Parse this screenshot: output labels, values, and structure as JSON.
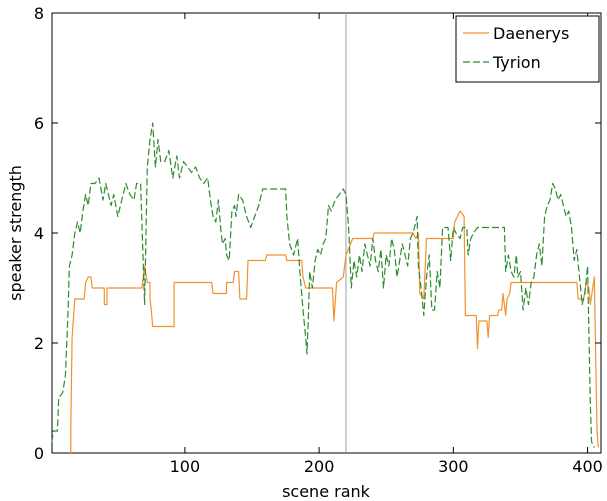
{
  "chart_data": {
    "type": "line",
    "title": "",
    "xlabel": "scene rank",
    "ylabel": "speaker strength",
    "xlim": [
      1,
      410
    ],
    "ylim": [
      0,
      8
    ],
    "xticks": [
      100,
      200,
      300,
      400
    ],
    "yticks": [
      0,
      2,
      4,
      6,
      8
    ],
    "xtick_labels": [
      "100",
      "200",
      "300",
      "400"
    ],
    "ytick_labels": [
      "0",
      "2",
      "4",
      "6",
      "8"
    ],
    "grid": false,
    "legend_position": "top-right",
    "vertical_marker_x": 220,
    "series": [
      {
        "name": "Daenerys",
        "color": "#f0922e",
        "style": "solid",
        "points": [
          [
            15,
            0
          ],
          [
            15,
            0.5
          ],
          [
            16,
            2.1
          ],
          [
            18,
            2.8
          ],
          [
            25,
            2.8
          ],
          [
            26,
            3.1
          ],
          [
            28,
            3.2
          ],
          [
            30,
            3.2
          ],
          [
            31,
            3.0
          ],
          [
            40,
            3.0
          ],
          [
            40,
            2.7
          ],
          [
            42,
            2.7
          ],
          [
            42,
            3.0
          ],
          [
            68,
            3.0
          ],
          [
            70,
            3.4
          ],
          [
            72,
            3.1
          ],
          [
            74,
            3.1
          ],
          [
            74,
            2.8
          ],
          [
            75,
            2.6
          ],
          [
            76,
            2.3
          ],
          [
            92,
            2.3
          ],
          [
            92,
            3.1
          ],
          [
            120,
            3.1
          ],
          [
            121,
            2.9
          ],
          [
            131,
            2.9
          ],
          [
            131,
            3.1
          ],
          [
            136,
            3.1
          ],
          [
            137,
            3.3
          ],
          [
            140,
            3.3
          ],
          [
            141,
            2.8
          ],
          [
            146,
            2.8
          ],
          [
            147,
            3.5
          ],
          [
            160,
            3.5
          ],
          [
            161,
            3.6
          ],
          [
            175,
            3.6
          ],
          [
            176,
            3.5
          ],
          [
            187,
            3.5
          ],
          [
            188,
            3.2
          ],
          [
            190,
            3.0
          ],
          [
            210,
            3.0
          ],
          [
            211,
            2.4
          ],
          [
            213,
            3.1
          ],
          [
            218,
            3.2
          ],
          [
            220,
            3.6
          ],
          [
            225,
            3.9
          ],
          [
            240,
            3.9
          ],
          [
            241,
            4.0
          ],
          [
            270,
            4.0
          ],
          [
            272,
            3.9
          ],
          [
            274,
            4.0
          ],
          [
            275,
            2.9
          ],
          [
            278,
            2.8
          ],
          [
            280,
            3.9
          ],
          [
            300,
            3.9
          ],
          [
            301,
            4.2
          ],
          [
            305,
            4.4
          ],
          [
            308,
            4.3
          ],
          [
            309,
            2.5
          ],
          [
            317,
            2.5
          ],
          [
            318,
            1.9
          ],
          [
            319,
            2.4
          ],
          [
            325,
            2.4
          ],
          [
            326,
            2.1
          ],
          [
            327,
            2.5
          ],
          [
            333,
            2.5
          ],
          [
            334,
            2.6
          ],
          [
            336,
            2.6
          ],
          [
            337,
            2.9
          ],
          [
            339,
            2.5
          ],
          [
            340,
            2.8
          ],
          [
            342,
            2.9
          ],
          [
            343,
            3.1
          ],
          [
            392,
            3.1
          ],
          [
            393,
            2.8
          ],
          [
            397,
            2.8
          ],
          [
            399,
            3.1
          ],
          [
            401,
            3.0
          ],
          [
            402,
            2.7
          ],
          [
            405,
            3.2
          ],
          [
            407,
            0.4
          ],
          [
            408,
            0.1
          ]
        ]
      },
      {
        "name": "Tyrion",
        "color": "#2e8b2e",
        "style": "dashed",
        "points": [
          [
            1,
            0.2
          ],
          [
            2,
            0.4
          ],
          [
            5,
            0.4
          ],
          [
            6,
            1.0
          ],
          [
            9,
            1.1
          ],
          [
            11,
            1.4
          ],
          [
            13,
            2.6
          ],
          [
            14,
            3.4
          ],
          [
            16,
            3.6
          ],
          [
            18,
            4.0
          ],
          [
            20,
            4.2
          ],
          [
            22,
            4.0
          ],
          [
            24,
            4.4
          ],
          [
            26,
            4.7
          ],
          [
            28,
            4.5
          ],
          [
            30,
            4.9
          ],
          [
            33,
            4.9
          ],
          [
            36,
            5.0
          ],
          [
            39,
            4.6
          ],
          [
            41,
            4.9
          ],
          [
            43,
            4.7
          ],
          [
            45,
            4.5
          ],
          [
            47,
            4.7
          ],
          [
            50,
            4.3
          ],
          [
            53,
            4.6
          ],
          [
            56,
            4.9
          ],
          [
            59,
            4.7
          ],
          [
            62,
            4.6
          ],
          [
            64,
            4.9
          ],
          [
            67,
            4.9
          ],
          [
            70,
            2.7
          ],
          [
            72,
            5.2
          ],
          [
            74,
            5.7
          ],
          [
            76,
            6.0
          ],
          [
            78,
            5.2
          ],
          [
            80,
            5.7
          ],
          [
            82,
            5.3
          ],
          [
            85,
            5.3
          ],
          [
            88,
            5.5
          ],
          [
            91,
            5.0
          ],
          [
            94,
            5.4
          ],
          [
            96,
            5.0
          ],
          [
            99,
            5.3
          ],
          [
            102,
            5.2
          ],
          [
            105,
            5.1
          ],
          [
            108,
            5.2
          ],
          [
            111,
            5.0
          ],
          [
            114,
            4.9
          ],
          [
            117,
            5.0
          ],
          [
            119,
            4.6
          ],
          [
            121,
            4.3
          ],
          [
            123,
            4.2
          ],
          [
            125,
            4.6
          ],
          [
            127,
            4.0
          ],
          [
            128,
            3.8
          ],
          [
            130,
            3.9
          ],
          [
            131,
            3.6
          ],
          [
            133,
            3.5
          ],
          [
            135,
            4.4
          ],
          [
            137,
            4.5
          ],
          [
            138,
            4.3
          ],
          [
            140,
            4.7
          ],
          [
            143,
            4.6
          ],
          [
            146,
            4.3
          ],
          [
            149,
            4.1
          ],
          [
            152,
            4.3
          ],
          [
            155,
            4.5
          ],
          [
            158,
            4.8
          ],
          [
            175,
            4.8
          ],
          [
            176,
            4.3
          ],
          [
            178,
            3.8
          ],
          [
            181,
            3.6
          ],
          [
            184,
            3.9
          ],
          [
            186,
            3.2
          ],
          [
            188,
            2.6
          ],
          [
            190,
            2.1
          ],
          [
            191,
            1.8
          ],
          [
            192,
            2.5
          ],
          [
            193,
            3.3
          ],
          [
            195,
            3.0
          ],
          [
            197,
            3.5
          ],
          [
            199,
            3.7
          ],
          [
            201,
            3.6
          ],
          [
            203,
            3.8
          ],
          [
            205,
            3.9
          ],
          [
            207,
            4.5
          ],
          [
            209,
            4.4
          ],
          [
            212,
            4.6
          ],
          [
            215,
            4.7
          ],
          [
            218,
            4.8
          ],
          [
            220,
            4.7
          ],
          [
            222,
            4.1
          ],
          [
            224,
            3.0
          ],
          [
            226,
            3.5
          ],
          [
            228,
            3.2
          ],
          [
            230,
            3.6
          ],
          [
            232,
            3.3
          ],
          [
            234,
            3.8
          ],
          [
            236,
            3.6
          ],
          [
            238,
            3.4
          ],
          [
            240,
            3.9
          ],
          [
            242,
            3.5
          ],
          [
            244,
            3.3
          ],
          [
            246,
            3.7
          ],
          [
            248,
            3.0
          ],
          [
            250,
            3.6
          ],
          [
            252,
            3.4
          ],
          [
            254,
            3.9
          ],
          [
            256,
            3.7
          ],
          [
            258,
            3.2
          ],
          [
            260,
            3.5
          ],
          [
            262,
            3.8
          ],
          [
            264,
            3.6
          ],
          [
            266,
            3.4
          ],
          [
            268,
            3.9
          ],
          [
            270,
            4.0
          ],
          [
            272,
            4.2
          ],
          [
            273,
            4.3
          ],
          [
            274,
            3.4
          ],
          [
            276,
            3.0
          ],
          [
            278,
            2.5
          ],
          [
            280,
            3.2
          ],
          [
            282,
            3.6
          ],
          [
            284,
            2.6
          ],
          [
            286,
            2.6
          ],
          [
            288,
            3.3
          ],
          [
            290,
            3.0
          ],
          [
            292,
            4.1
          ],
          [
            296,
            4.1
          ],
          [
            298,
            3.5
          ],
          [
            300,
            4.1
          ],
          [
            302,
            4.0
          ],
          [
            305,
            3.9
          ],
          [
            307,
            4.1
          ],
          [
            310,
            4.1
          ],
          [
            311,
            3.6
          ],
          [
            313,
            3.9
          ],
          [
            315,
            4.0
          ],
          [
            318,
            4.1
          ],
          [
            338,
            4.1
          ],
          [
            339,
            3.3
          ],
          [
            341,
            3.6
          ],
          [
            343,
            3.3
          ],
          [
            345,
            3.2
          ],
          [
            347,
            3.6
          ],
          [
            348,
            3.2
          ],
          [
            350,
            3.3
          ],
          [
            352,
            2.6
          ],
          [
            354,
            3.0
          ],
          [
            356,
            2.7
          ],
          [
            358,
            3.1
          ],
          [
            360,
            3.2
          ],
          [
            362,
            3.6
          ],
          [
            364,
            3.8
          ],
          [
            366,
            3.4
          ],
          [
            368,
            4.3
          ],
          [
            370,
            4.5
          ],
          [
            372,
            4.6
          ],
          [
            374,
            4.9
          ],
          [
            376,
            4.8
          ],
          [
            378,
            4.6
          ],
          [
            380,
            4.7
          ],
          [
            382,
            4.5
          ],
          [
            384,
            4.3
          ],
          [
            386,
            4.4
          ],
          [
            388,
            4.1
          ],
          [
            390,
            3.5
          ],
          [
            392,
            3.7
          ],
          [
            394,
            3.2
          ],
          [
            396,
            2.7
          ],
          [
            398,
            2.9
          ],
          [
            400,
            3.4
          ],
          [
            402,
            0.9
          ],
          [
            403,
            0.2
          ],
          [
            405,
            0.1
          ]
        ]
      }
    ]
  }
}
